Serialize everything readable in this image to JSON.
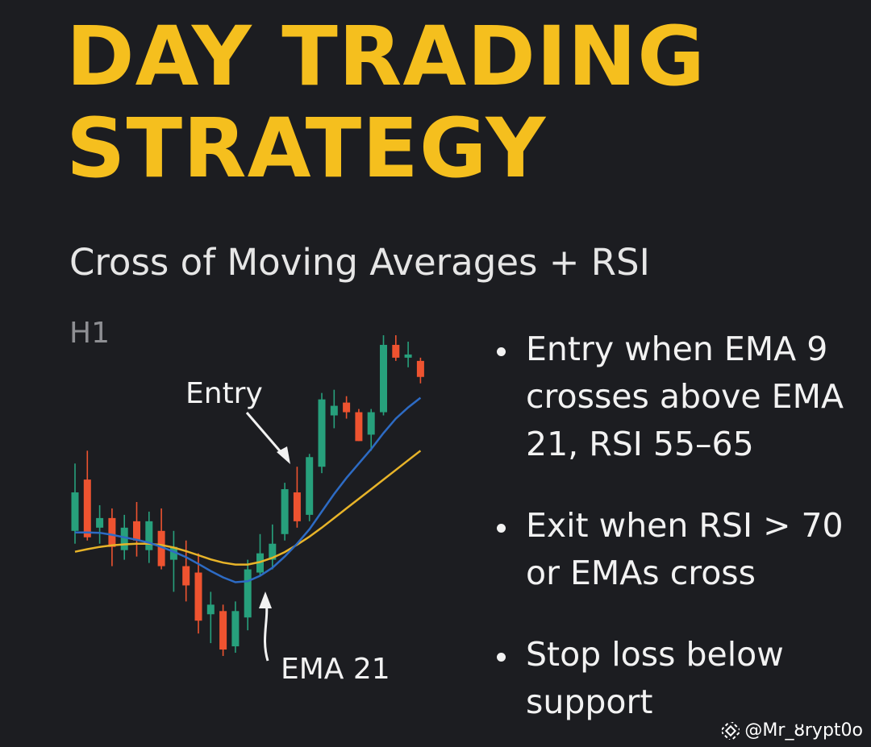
{
  "title_line1": "DAY TRADING",
  "title_line2": "STRATEGY",
  "subtitle": "Cross of Moving Averages + RSI",
  "watermark": "@Mr_ȣrypt0o",
  "bullets": [
    "Entry when EMA 9 crosses above EMA 21, RSI 55–65",
    "Exit when RSI > 70 or EMAs cross",
    "Stop loss below support"
  ],
  "colors": {
    "accent": "#f5bf1e",
    "bull": "#27a07c",
    "bear": "#ee5330",
    "ema_fast": "#2d6bc4",
    "ema_slow": "#e8b429",
    "background": "#1c1d21"
  },
  "chart_data": {
    "type": "candlestick",
    "timeframe_label": "H1",
    "annotations": [
      "Entry",
      "EMA 21"
    ],
    "ylim": [
      0,
      100
    ],
    "candles": [
      {
        "o": 40,
        "h": 61,
        "l": 36,
        "c": 52
      },
      {
        "o": 56,
        "h": 65,
        "l": 37,
        "c": 38
      },
      {
        "o": 41,
        "h": 48,
        "l": 36,
        "c": 44
      },
      {
        "o": 44,
        "h": 47,
        "l": 29,
        "c": 35
      },
      {
        "o": 34,
        "h": 45,
        "l": 31,
        "c": 41
      },
      {
        "o": 43,
        "h": 49,
        "l": 32,
        "c": 37
      },
      {
        "o": 34,
        "h": 46,
        "l": 30,
        "c": 43
      },
      {
        "o": 40,
        "h": 47,
        "l": 28,
        "c": 29
      },
      {
        "o": 31,
        "h": 40,
        "l": 21,
        "c": 35
      },
      {
        "o": 29,
        "h": 37,
        "l": 18,
        "c": 23
      },
      {
        "o": 27,
        "h": 33,
        "l": 8,
        "c": 12
      },
      {
        "o": 14,
        "h": 21,
        "l": 5,
        "c": 17
      },
      {
        "o": 15,
        "h": 17,
        "l": 1,
        "c": 3
      },
      {
        "o": 4,
        "h": 18,
        "l": 2,
        "c": 15
      },
      {
        "o": 13,
        "h": 31,
        "l": 9,
        "c": 28
      },
      {
        "o": 27,
        "h": 39,
        "l": 26,
        "c": 33
      },
      {
        "o": 31,
        "h": 42,
        "l": 28,
        "c": 36
      },
      {
        "o": 39,
        "h": 55,
        "l": 37,
        "c": 53
      },
      {
        "o": 52,
        "h": 60,
        "l": 41,
        "c": 43
      },
      {
        "o": 45,
        "h": 64,
        "l": 43,
        "c": 63
      },
      {
        "o": 60,
        "h": 83,
        "l": 58,
        "c": 81
      },
      {
        "o": 76,
        "h": 84,
        "l": 72,
        "c": 79
      },
      {
        "o": 80,
        "h": 82,
        "l": 75,
        "c": 77
      },
      {
        "o": 77,
        "h": 78,
        "l": 68,
        "c": 68
      },
      {
        "o": 70,
        "h": 78,
        "l": 65,
        "c": 77
      },
      {
        "o": 77,
        "h": 101,
        "l": 76,
        "c": 98
      },
      {
        "o": 98,
        "h": 101,
        "l": 93,
        "c": 94
      },
      {
        "o": 94,
        "h": 99,
        "l": 91,
        "c": 95
      },
      {
        "o": 93,
        "h": 94,
        "l": 86,
        "c": 88
      }
    ],
    "series": [
      {
        "name": "EMA 9",
        "values": [
          39.5,
          39.5,
          39.4,
          38.8,
          38.0,
          37.2,
          36.3,
          35.0,
          33.5,
          31.8,
          29.7,
          27.5,
          25.5,
          24.0,
          24.3,
          26.0,
          28.5,
          32.0,
          36.0,
          40.5,
          46.0,
          51.5,
          56.5,
          61.0,
          65.5,
          70.5,
          75.0,
          78.5,
          81.5
        ]
      },
      {
        "name": "EMA 21",
        "values": [
          33.5,
          34.3,
          35.0,
          35.5,
          35.8,
          36.0,
          36.0,
          35.6,
          34.8,
          33.7,
          32.4,
          31.1,
          30.1,
          29.5,
          29.5,
          30.3,
          31.6,
          33.4,
          35.7,
          38.2,
          41.0,
          44.0,
          47.0,
          50.0,
          53.0,
          56.0,
          59.0,
          62.0,
          65.0
        ]
      }
    ]
  }
}
